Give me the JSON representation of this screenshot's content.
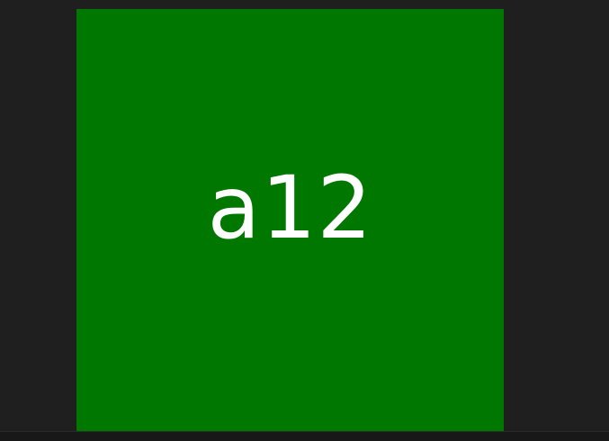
{
  "tile": {
    "label": "a12",
    "background_color": "#007800",
    "text_color": "#ffffff"
  },
  "colors": {
    "page_background": "#1f1f1f",
    "bottom_bar": "#181818"
  }
}
